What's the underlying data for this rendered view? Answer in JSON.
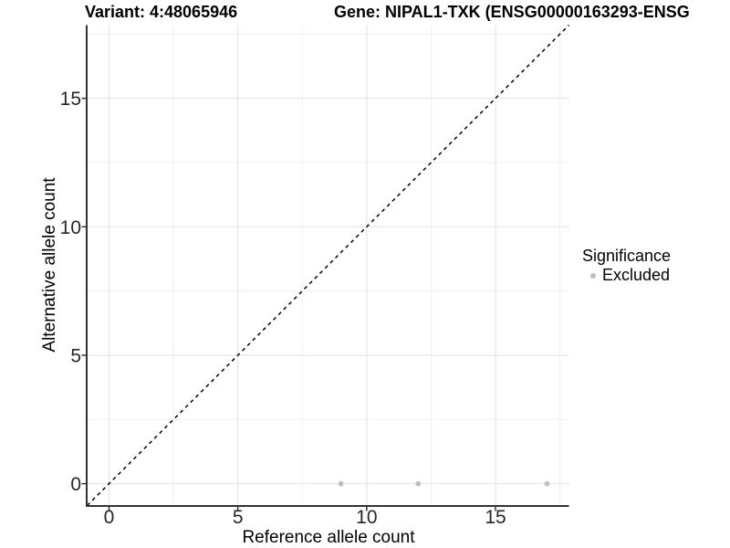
{
  "header": {
    "variant_title": "Variant: 4:48065946",
    "gene_title": "Gene: NIPAL1-TXK (ENSG00000163293-ENSG"
  },
  "colors": {
    "background": "#ffffff",
    "grid_major": "#e2e2e2",
    "grid_minor": "#f0f0f0",
    "axis_line": "#333333",
    "tick_mark": "#333333",
    "tick_label": "#262626",
    "reference_line": "#000000",
    "point_excluded": "#bdbdbd"
  },
  "chart_data": {
    "type": "scatter",
    "title": "Variant: 4:48065946 — Gene: NIPAL1-TXK (ENSG00000163293-ENSG",
    "xlabel": "Reference allele count",
    "ylabel": "Alternative allele count",
    "xlim": [
      -0.85,
      17.85
    ],
    "ylim": [
      -0.85,
      17.85
    ],
    "x_ticks": [
      0,
      5,
      10,
      15
    ],
    "y_ticks": [
      0,
      5,
      10,
      15
    ],
    "x_minor_ticks": [
      2.5,
      7.5,
      12.5,
      17.5
    ],
    "y_minor_ticks": [
      2.5,
      7.5,
      12.5,
      17.5
    ],
    "grid": true,
    "reference_line": {
      "type": "identity",
      "style": "dashed"
    },
    "series": [
      {
        "name": "Excluded",
        "color": "#bdbdbd",
        "points": [
          {
            "x": 9,
            "y": 0
          },
          {
            "x": 12,
            "y": 0
          },
          {
            "x": 17,
            "y": 0
          }
        ]
      }
    ],
    "legend": {
      "title": "Significance",
      "position": "right",
      "items": [
        {
          "label": "Excluded",
          "color": "#bdbdbd"
        }
      ]
    }
  }
}
